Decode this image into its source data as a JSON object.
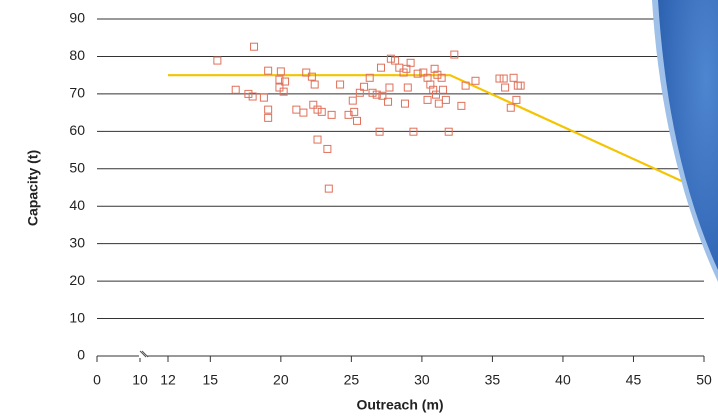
{
  "chart_data": {
    "type": "scatter-line",
    "x_label": "Outreach (m)",
    "y_label": "Capacity (t)",
    "xlim": [
      0,
      50
    ],
    "xticks": [
      0,
      10,
      12,
      15,
      20,
      25,
      30,
      35,
      40,
      45,
      50
    ],
    "x_break": [
      10,
      12
    ],
    "ylim": [
      0,
      90
    ],
    "yticks": [
      0,
      10,
      20,
      30,
      40,
      50,
      60,
      70,
      80,
      90
    ],
    "grid": true,
    "series": [
      {
        "type": "line",
        "color": "#f5c400",
        "x": [
          12,
          32,
          50
        ],
        "values": [
          75,
          75,
          44
        ]
      },
      {
        "type": "scatter",
        "color": "#e0705a",
        "x": [
          15.5,
          18.1,
          16.8,
          17.7,
          18.0,
          18.8,
          19.1,
          19.1,
          19.1,
          20.0,
          19.9,
          20.2,
          20.3,
          19.9,
          21.1,
          21.6,
          21.8,
          22.2,
          22.3,
          22.4,
          22.6,
          22.6,
          22.9,
          23.3,
          23.4,
          23.6,
          24.2,
          24.8,
          25.2,
          25.1,
          25.4,
          25.6,
          25.9,
          26.3,
          26.5,
          26.8,
          27.0,
          27.1,
          27.2,
          27.6,
          27.8,
          28.1,
          27.7,
          28.4,
          28.7,
          28.9,
          29.0,
          29.2,
          28.8,
          29.4,
          29.7,
          30.1,
          30.4,
          30.6,
          30.4,
          30.9,
          30.8,
          31.0,
          31.1,
          31.2,
          31.4,
          31.5,
          31.7,
          31.9,
          32.3,
          32.8,
          33.1,
          33.8,
          35.5,
          35.8,
          35.9,
          36.3,
          36.5,
          36.8,
          36.7,
          37.0
        ],
        "values": [
          78.9,
          82.6,
          71.1,
          70.0,
          69.3,
          69.0,
          76.2,
          65.8,
          63.6,
          76.0,
          71.7,
          70.6,
          73.3,
          73.8,
          65.8,
          65.0,
          75.7,
          74.6,
          67.1,
          72.5,
          65.8,
          57.8,
          65.2,
          55.3,
          44.7,
          64.4,
          72.5,
          64.4,
          65.2,
          68.2,
          62.8,
          70.3,
          71.9,
          74.3,
          70.3,
          69.8,
          59.9,
          77.0,
          69.5,
          67.9,
          79.4,
          78.9,
          71.7,
          77.0,
          75.7,
          76.7,
          71.7,
          78.3,
          67.4,
          59.9,
          75.4,
          75.7,
          74.3,
          72.5,
          68.4,
          76.7,
          71.1,
          69.8,
          75.1,
          67.4,
          74.3,
          71.1,
          68.4,
          59.9,
          80.5,
          66.8,
          72.2,
          73.5,
          74.1,
          74.1,
          71.7,
          66.3,
          74.3,
          72.2,
          68.4,
          72.2
        ]
      }
    ]
  }
}
